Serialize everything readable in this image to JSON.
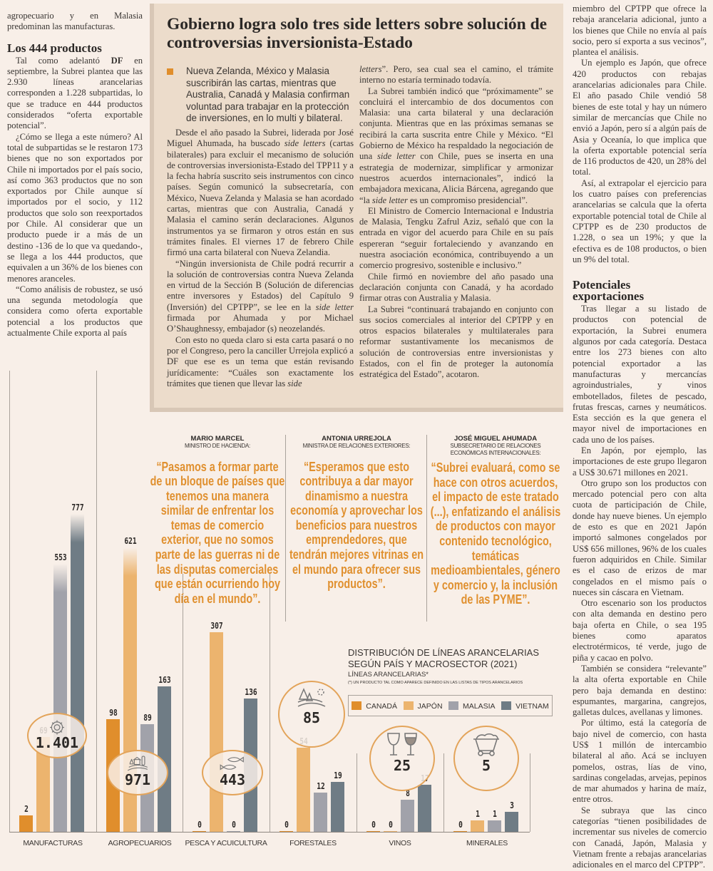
{
  "left_column": {
    "p0": "agropecuario y en Malasia predominan las manufacturas.",
    "heading": "Los 444 productos",
    "p1_pre": "Tal como adelantó ",
    "p1_bold": "DF",
    "p1_post": " en septiembre, la Subrei plantea que las 2.930 líneas arancelarias corresponden a 1.228 subpartidas, lo que se traduce en 444 productos considerados “oferta exportable potencial”.",
    "p2": "¿Cómo se llega a este número? Al total de subpartidas se le restaron 173 bienes que no son exportados por Chile ni importados por el país socio, así como 363 productos que no son exportados por Chile aunque sí importados por el socio, y 112 productos que solo son reexportados por Chile. Al considerar que un producto puede ir a más de un destino -136 de lo que va quedando-, se llega a los 444 productos, que equivalen a un 36% de los bienes con menores aranceles.",
    "p3": "“Como análisis de robustez, se usó una segunda metodología que considera como oferta exportable potencial a los productos que actualmente Chile exporta al país"
  },
  "box": {
    "headline": "Gobierno logra solo tres side letters sobre solución de controversias inversionista-Estado",
    "deck": "Nueva Zelanda, México y Malasia suscribirán las cartas, mientras que Australia, Canadá y Malasia confirman voluntad para trabajar en la protección de inversiones, en lo multi y bilateral.",
    "c1p1a": "Desde el año pasado la Subrei, liderada por José Miguel Ahumada, ha buscado ",
    "c1p1i": "side letters",
    "c1p1b": " (cartas bilaterales) para excluir el mecanismo de solución de controversias inversionista-Estado del TPP11 y a la fecha habría suscrito seis instrumentos con cinco países. Según comunicó la subsecretaría, con México, Nueva Zelanda y Malasia se han acordado cartas, mientras que con Australia, Canadá y Malasia el camino serán declaraciones. Algunos instrumentos ya se firmaron y otros están en sus trámites finales. El viernes 17 de febrero Chile firmó una carta bilateral con Nueva Zelandia.",
    "c1p2a": "“Ningún inversionista de Chile podrá recurrir a la solución de controversias contra Nueva Zelanda en virtud de la Sección B (Solución de diferencias entre inversores y Estados) del Capítulo 9 (Inversión) del CPTPP”, se lee en la ",
    "c1p2i": "side letter",
    "c1p2b": " firmada por Ahumada y por Michael O’Shaughnessy, embajador (s) neozelandés.",
    "c1p3a": "Con esto no queda claro si esta carta pasará o no por el Congreso, pero la canciller Urrejola explicó a DF que ese es un tema que están revisando jurídicamente: “Cuáles son exactamente los trámites que tienen que llevar las ",
    "c1p3i": "side",
    "c2p0i": "letters",
    "c2p0b": "”. Pero, sea cual sea el camino, el trámite interno no estaría terminado todavía.",
    "c2p1a": "La Subrei también indicó que “próximamente” se concluirá el intercambio de dos documentos con Malasia: una carta bilateral y una declaración conjunta. Mientras que en las próximas semanas se recibirá la carta suscrita entre Chile y México. “El Gobierno de México ha respaldado la negociación de una ",
    "c2p1i": "side letter",
    "c2p1b": " con Chile, pues se inserta en una estrategia de modernizar, simplificar y armonizar nuestros acuerdos internacionales”, indicó la embajadora mexicana, Alicia Bárcena, agregando que “la ",
    "c2p1i2": "side letter",
    "c2p1c": " es un compromiso presidencial”.",
    "c2p2": "El Ministro de Comercio Internacional e Industria de Malasia, Tengku Zafrul Aziz, señaló que con la entrada en vigor del acuerdo para Chile en su país espereran “seguir fortaleciendo y avanzando en nuestra asociación económica, contribuyendo a un comercio progresivo, sostenible e inclusivo.”",
    "c2p3": "Chile firmó en noviembre del año pasado una declaración conjunta con Canadá, y ha acordado firmar otras con Australia y Malasia.",
    "c2p4": "La Subrei “continuará trabajando en conjunto con sus socios comerciales al interior del CPTPP y en otros espacios bilaterales y multilaterales para reformar sustantivamente los mecanismos de solución de controversias entre inversionistas y Estados, con el fin de proteger la autonomía estratégica del Estado”, acotaron."
  },
  "quotes": [
    {
      "name": "MARIO MARCEL",
      "role": "Ministro de Hacienda:",
      "text": "“Pasamos a formar parte de un bloque de países que tenemos una manera similar de enfrentar los temas de comercio exterior, que no somos parte de las guerras ni de las disputas comerciales que están ocurriendo hoy día en el mundo”."
    },
    {
      "name": "ANTONIA URREJOLA",
      "role": "Ministra de Relaciones Exteriores:",
      "text": "“Esperamos que esto contribuya a dar mayor dinamismo a nuestra economía y aprovechar los beneficios para nuestros emprendedores, que tendrán mejores vitrinas en el mundo para ofrecer sus productos”."
    },
    {
      "name": "JOSÉ MIGUEL AHUMADA",
      "role": "Subsecretario de Relaciones Económicas Internacionales:",
      "text": "“Subrei evaluará, como se hace con otros acuerdos, el impacto de este tratado (...), enfatizando el análisis de productos con mayor contenido tecnológico, temáticas medioambientales, género y comercio y, la inclusión de las PYME”."
    }
  ],
  "right_column": {
    "p0": "miembro del CPTPP que ofrece la rebaja arancelaria adicional, junto a los bienes que Chile no envía al país socio, pero sí exporta a sus vecinos”, plantea el análisis.",
    "p1": "Un ejemplo es Japón, que ofrece 420 productos con rebajas arancelarias adicionales para Chile. El año pasado Chile vendió 58 bienes de este total y hay un número similar de mercancías que Chile no envió a Japón, pero sí a algún país de Asia y Oceanía, lo que implica que la oferta exportable potencial sería de 116 productos de 420, un 28% del total.",
    "p2": "Así, al extrapolar el ejercicio para los cuatro países con preferencias arancelarias se calcula que la oferta exportable potencial total de Chile al CPTPP es de 230 productos de 1.228, o sea un 19%; y que la efectiva es de 108 productos, o bien un 9% del total.",
    "heading": "Potenciales exportaciones",
    "p3": "Tras llegar a su listado de productos con potencial de exportación, la Subrei enumera algunos por cada categoría. Destaca entre los 273 bienes con alto potencial exportador a las manufacturas y mercancías agroindustriales, y vinos embotellados, filetes de pescado, frutas frescas, carnes y neumáticos. Esta sección es la que genera el mayor nivel de importaciones en cada uno de los países.",
    "p4": "En Japón, por ejemplo, las importaciones de este grupo llegaron a US$ 30.671 millones en 2021.",
    "p5": "Otro grupo son los productos con mercado potencial pero con alta cuota de participación de Chile, donde hay nueve bienes. Un ejemplo de esto es que en 2021 Japón importó salmones congelados por US$ 656 millones, 96% de los cuales fueron adquiridos en Chile. Similar es el caso de erizos de mar congelados en el mismo país o nueces sin cáscara en Vietnam.",
    "p6": "Otro escenario son los productos con alta demanda en destino pero baja oferta en Chile, o sea 195 bienes como aparatos electrotérmicos, té verde, jugo de piña y cacao en polvo.",
    "p7": "También se considera “relevante” la alta oferta exportable en Chile pero baja demanda en destino: espumantes, margarina, cangrejos, galletas dulces, avellanas y limones.",
    "p8": "Por último, está la categoría de bajo nivel de comercio, con hasta US$ 1 millón de intercambio bilateral al año. Acá se incluyen pomelos, ostras, lías de vino, sardinas congeladas, arvejas, pepinos de mar ahumados y harina de maíz, entre otros.",
    "p9": "Se subraya que las cinco categorías “tienen posibilidades de incrementar sus niveles de comercio con Canadá, Japón, Malasia y Vietnam frente a rebajas arancelarias adicionales en el marco del CPTPP”."
  },
  "chart_data": {
    "type": "bar",
    "title": "DISTRIBUCIÓN DE LÍNEAS ARANCELARIAS SEGÚN PAÍS Y MACROSECTOR (2021)",
    "title_line1": "DISTRIBUCIÓN DE LÍNEAS ARANCELARIAS",
    "title_line2": "SEGÚN PAÍS Y MACROSECTOR (2021)",
    "ylabel": "LÍNEAS ARANCELARIAS*",
    "note": "(*) UN PRODUCTO TAL COMO APARECE DEFINIDO EN LAS LISTAS DE TIPOS ARANCELARIOS",
    "categories": [
      "MANUFACTURAS",
      "AGROPECUARIOS",
      "PESCA Y ACUICULTURA",
      "FORESTALES",
      "VINOS",
      "MINERALES"
    ],
    "totals": [
      "1.401",
      "971",
      "443",
      "85",
      "25",
      "5"
    ],
    "category_icons": [
      "gear-icon",
      "farm-icon",
      "fish-icon",
      "forest-icon",
      "wine-glasses-icon",
      "mine-cart-icon"
    ],
    "series": [
      {
        "name": "CANADÁ",
        "color": "#e08e2c",
        "values": [
          2,
          98,
          0,
          0,
          0,
          0
        ]
      },
      {
        "name": "JAPÓN",
        "color": "#ecb46e",
        "values": [
          69,
          621,
          307,
          54,
          0,
          1
        ]
      },
      {
        "name": "MALASIA",
        "color": "#a1a2aa",
        "values": [
          553,
          89,
          0,
          12,
          8,
          1
        ]
      },
      {
        "name": "VIETNAM",
        "color": "#6f7c85",
        "values": [
          777,
          163,
          136,
          19,
          17,
          3
        ]
      }
    ],
    "legend": "top-right",
    "grid": false
  }
}
